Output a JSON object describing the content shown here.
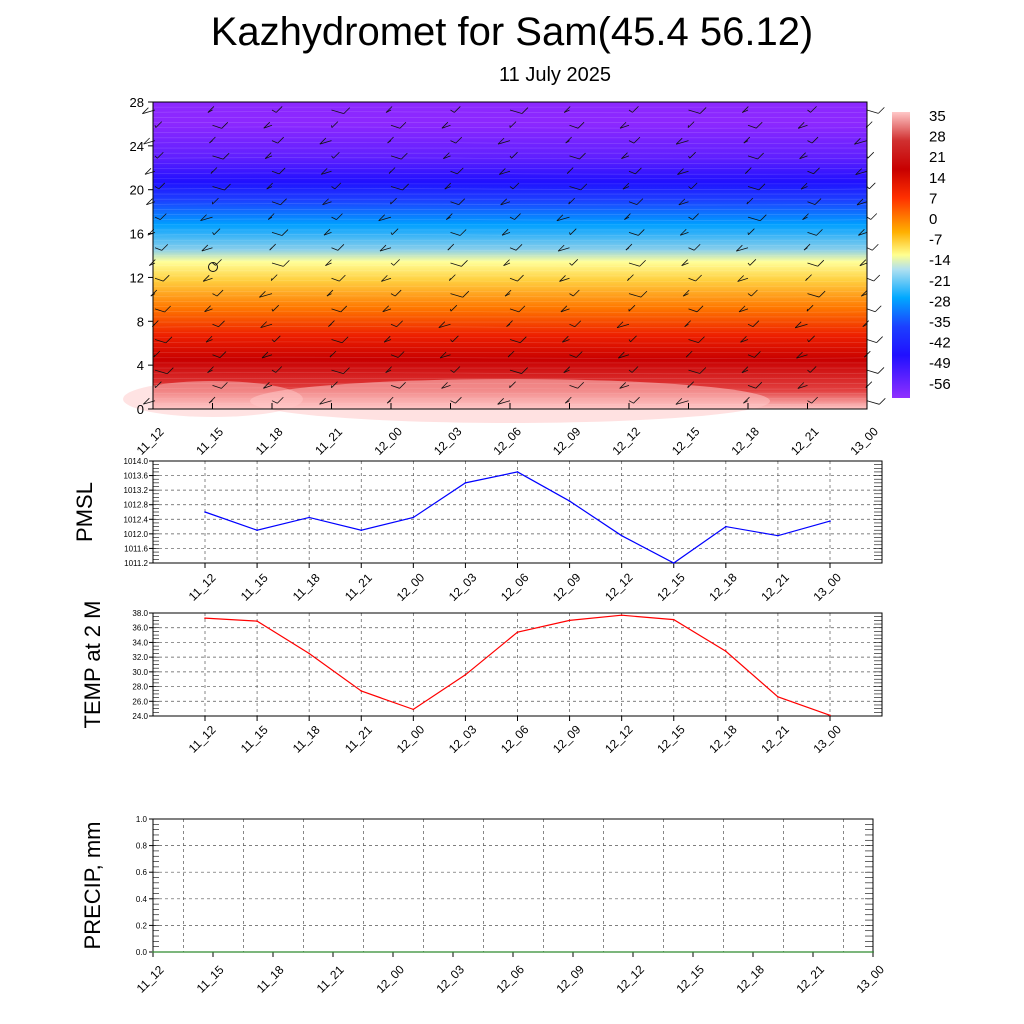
{
  "page": {
    "title": "Kazhydromet for Sam(45.4 56.12)",
    "subtitle": "11 July 2025"
  },
  "chart_data": [
    {
      "id": "cross_section",
      "type": "heatmap",
      "description_values": "temperature cross-section with wind barbs; y axis 0-28",
      "x_ticks": [
        "11_12",
        "11_15",
        "11_18",
        "11_21",
        "12_00",
        "12_03",
        "12_06",
        "12_09",
        "12_12",
        "12_15",
        "12_18",
        "12_21",
        "13_00"
      ],
      "y_ticks": [
        "0",
        "4",
        "8",
        "12",
        "16",
        "20",
        "24",
        "28"
      ],
      "ylim": [
        0,
        28
      ],
      "colorbar_labels": [
        "35",
        "28",
        "21",
        "14",
        "7",
        "0",
        "-7",
        "-14",
        "-21",
        "-28",
        "-35",
        "-42",
        "-49",
        "-56"
      ],
      "colorbar_range": [
        -62,
        38
      ],
      "colors": [
        "#ffc8c8",
        "#e24040",
        "#c80000",
        "#ee2000",
        "#ff7800",
        "#ffd040",
        "#ffff9a",
        "#87ceeb",
        "#00a0ff",
        "#1c40ff",
        "#2010ff",
        "#6020ff",
        "#8c28ff"
      ]
    },
    {
      "id": "pmsl",
      "type": "line",
      "ylabel": "PMSL",
      "categories": [
        "11_12",
        "11_15",
        "11_18",
        "11_21",
        "12_00",
        "12_03",
        "12_06",
        "12_09",
        "12_12",
        "12_15",
        "12_18",
        "12_21",
        "13_00"
      ],
      "values": [
        1012.6,
        1012.1,
        1012.45,
        1012.1,
        1012.45,
        1013.4,
        1013.7,
        1012.9,
        1011.95,
        1011.2,
        1012.2,
        1011.95,
        1012.35
      ],
      "y_ticks": [
        "1014.0",
        "1013.6",
        "1013.2",
        "1012.8",
        "1012.4",
        "1012.0",
        "1011.6",
        "1011.2"
      ],
      "ylim": [
        1011.2,
        1014.0
      ],
      "color": "#0000ff",
      "grid": true
    },
    {
      "id": "temp",
      "type": "line",
      "ylabel": "TEMP at 2 M",
      "categories": [
        "11_12",
        "11_15",
        "11_18",
        "11_21",
        "12_00",
        "12_03",
        "12_06",
        "12_09",
        "12_12",
        "12_15",
        "12_18",
        "12_21",
        "13_00"
      ],
      "values": [
        37.3,
        36.9,
        32.5,
        27.4,
        24.9,
        29.6,
        35.4,
        37.0,
        37.7,
        37.1,
        32.8,
        26.6,
        24.1
      ],
      "y_ticks": [
        "38.0",
        "36.0",
        "34.0",
        "32.0",
        "30.0",
        "28.0",
        "26.0",
        "24.0"
      ],
      "ylim": [
        24.0,
        38.0
      ],
      "color": "#ff0000",
      "grid": true
    },
    {
      "id": "precip",
      "type": "line",
      "ylabel": "PRECIP, mm",
      "categories": [
        "11_12",
        "11_15",
        "11_18",
        "11_21",
        "12_00",
        "12_03",
        "12_06",
        "12_09",
        "12_12",
        "12_15",
        "12_18",
        "12_21",
        "13_00"
      ],
      "values": [
        0,
        0,
        0,
        0,
        0,
        0,
        0,
        0,
        0,
        0,
        0,
        0,
        0
      ],
      "y_ticks": [
        "1.0",
        "0.8",
        "0.6",
        "0.4",
        "0.2",
        "0.0"
      ],
      "ylim": [
        0.0,
        1.0
      ],
      "color": "#2e8b2e",
      "grid": true
    }
  ]
}
